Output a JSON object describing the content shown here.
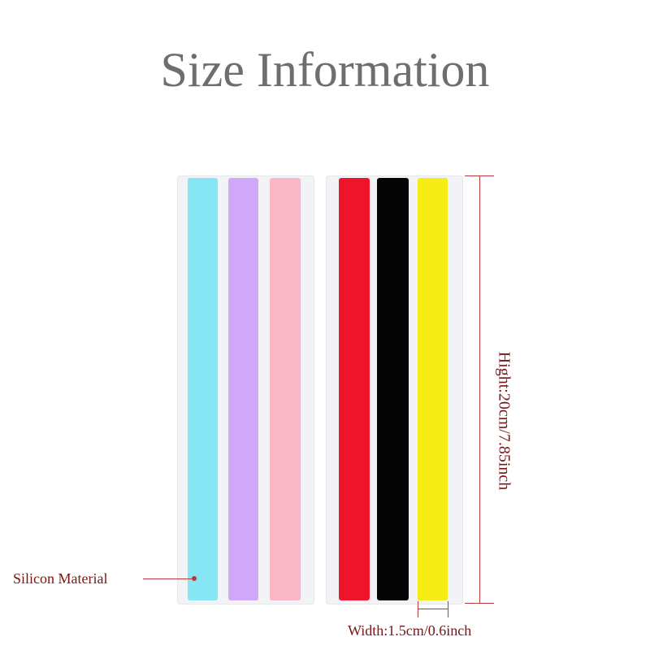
{
  "title": "Size Information",
  "strips": [
    {
      "color": "#86e6f3"
    },
    {
      "color": "#cfa9f7"
    },
    {
      "color": "#f8b7c5"
    },
    {
      "color": "#f0142b"
    },
    {
      "color": "#050505"
    },
    {
      "color": "#f4ec14"
    }
  ],
  "annotations": {
    "height": "Hight:20cm/7.85inch",
    "width": "Width:1.5cm/0.6inch",
    "material": "Silicon Material"
  },
  "colors": {
    "title": "#6e6e6e",
    "annotation_text": "#7a1515",
    "annotation_line": "#b83a3a"
  }
}
